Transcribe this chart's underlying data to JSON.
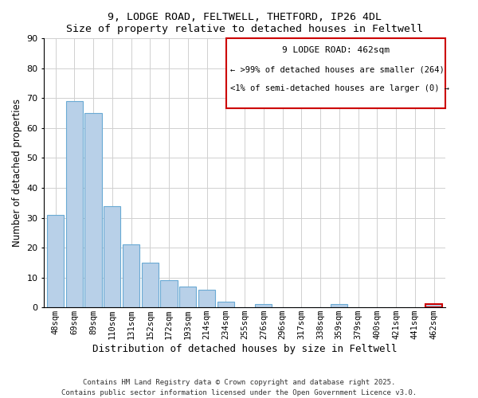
{
  "title": "9, LODGE ROAD, FELTWELL, THETFORD, IP26 4DL",
  "subtitle": "Size of property relative to detached houses in Feltwell",
  "xlabel": "Distribution of detached houses by size in Feltwell",
  "ylabel": "Number of detached properties",
  "categories": [
    "48sqm",
    "69sqm",
    "89sqm",
    "110sqm",
    "131sqm",
    "152sqm",
    "172sqm",
    "193sqm",
    "214sqm",
    "234sqm",
    "255sqm",
    "276sqm",
    "296sqm",
    "317sqm",
    "338sqm",
    "359sqm",
    "379sqm",
    "400sqm",
    "421sqm",
    "441sqm",
    "462sqm"
  ],
  "values": [
    31,
    69,
    65,
    34,
    21,
    15,
    9,
    7,
    6,
    2,
    0,
    1,
    0,
    0,
    0,
    1,
    0,
    0,
    0,
    0,
    1
  ],
  "bar_color": "#b8d0e8",
  "bar_edge_color": "#6aaad4",
  "highlight_bar_index": 20,
  "highlight_bar_edge_color": "#cc0000",
  "box_edge_color": "#cc0000",
  "ylim": [
    0,
    90
  ],
  "yticks": [
    0,
    10,
    20,
    30,
    40,
    50,
    60,
    70,
    80,
    90
  ],
  "legend_title": "9 LODGE ROAD: 462sqm",
  "legend_line1": "← >99% of detached houses are smaller (264)",
  "legend_line2": "<1% of semi-detached houses are larger (0) →",
  "footer1": "Contains HM Land Registry data © Crown copyright and database right 2025.",
  "footer2": "Contains public sector information licensed under the Open Government Licence v3.0."
}
